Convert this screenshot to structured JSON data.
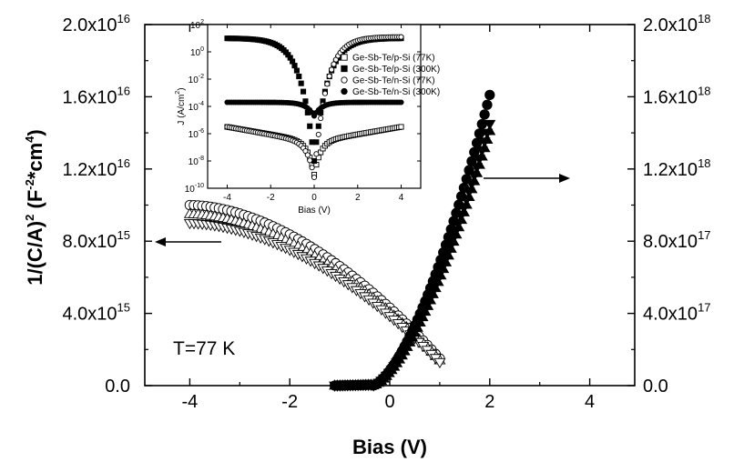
{
  "chart_data": [
    {
      "type": "scatter",
      "title": "",
      "xlabel": "Bias (V)",
      "ylabel": "1/(C/A)",
      "ylabel_sup1": "2",
      "ylabel_unit_open": " (F",
      "ylabel_sup2": "-2",
      "ylabel_unit_mid": "*cm",
      "ylabel_sup3": "4",
      "ylabel_unit_close": ")",
      "xlim": [
        -4.9,
        4.9
      ],
      "ylim_left": [
        0,
        2e+16
      ],
      "ylim_right": [
        0,
        2e+18
      ],
      "x_ticks": [
        {
          "value": -4,
          "label": "-4"
        },
        {
          "value": -2,
          "label": "-2"
        },
        {
          "value": 0,
          "label": "0"
        },
        {
          "value": 2,
          "label": "2"
        },
        {
          "value": 4,
          "label": "4"
        }
      ],
      "y_left_ticks": [
        {
          "value": 0,
          "mantissa": "0.0",
          "exp": ""
        },
        {
          "value": 4000000000000000.0,
          "mantissa": "4.0x10",
          "exp": "15"
        },
        {
          "value": 8000000000000000.0,
          "mantissa": "8.0x10",
          "exp": "15"
        },
        {
          "value": 1.2e+16,
          "mantissa": "1.2x10",
          "exp": "16"
        },
        {
          "value": 1.6e+16,
          "mantissa": "1.6x10",
          "exp": "16"
        },
        {
          "value": 2e+16,
          "mantissa": "2.0x10",
          "exp": "16"
        }
      ],
      "y_right_ticks": [
        {
          "value": 0,
          "mantissa": "0.0",
          "exp": ""
        },
        {
          "value": 4e+17,
          "mantissa": "4.0x10",
          "exp": "17"
        },
        {
          "value": 8e+17,
          "mantissa": "8.0x10",
          "exp": "17"
        },
        {
          "value": 1.2e+18,
          "mantissa": "1.2x10",
          "exp": "18"
        },
        {
          "value": 1.6e+18,
          "mantissa": "1.6x10",
          "exp": "18"
        },
        {
          "value": 2e+18,
          "mantissa": "2.0x10",
          "exp": "18"
        }
      ],
      "annotation": "T=77 K",
      "series": [
        {
          "marker": "open-circle",
          "axis": "left",
          "x_range": [
            -4.0,
            1.0
          ],
          "y_start": 1e+16,
          "y_end": 1500000000000000.0
        },
        {
          "marker": "open-triangle-up",
          "axis": "left",
          "x_range": [
            -4.0,
            1.0
          ],
          "y_start": 9500000000000000.0,
          "y_end": 1400000000000000.0
        },
        {
          "marker": "open-triangle-down",
          "axis": "left",
          "x_range": [
            -4.0,
            1.0
          ],
          "y_start": 9000000000000000.0,
          "y_end": 1300000000000000.0
        },
        {
          "marker": "filled-circle",
          "axis": "right",
          "x_range": [
            -1.1,
            2.0
          ],
          "y_start": 0,
          "y_end": 1.61e+18
        },
        {
          "marker": "filled-triangle-down",
          "axis": "right",
          "x_range": [
            -1.1,
            2.0
          ],
          "y_start": 0,
          "y_end": 1.45e+18
        },
        {
          "marker": "filled-triangle-up",
          "axis": "right",
          "x_range": [
            -1.1,
            2.0
          ],
          "y_start": 0,
          "y_end": 1.41e+18
        }
      ]
    },
    {
      "type": "scatter",
      "title": "",
      "xlabel": "Bias (V)",
      "ylabel": "J (A/cm",
      "ylabel_sup": "2",
      "ylabel_close": ")",
      "yscale": "log",
      "xlim": [
        -4.9,
        4.9
      ],
      "ylim": [
        1e-10,
        100
      ],
      "x_ticks": [
        {
          "value": -4,
          "label": "-4"
        },
        {
          "value": -2,
          "label": "-2"
        },
        {
          "value": 0,
          "label": "0"
        },
        {
          "value": 2,
          "label": "2"
        },
        {
          "value": 4,
          "label": "4"
        }
      ],
      "y_ticks": [
        {
          "exp_value": 2,
          "base": "10",
          "exp": "2"
        },
        {
          "exp_value": 0,
          "base": "10",
          "exp": "0"
        },
        {
          "exp_value": -2,
          "base": "10",
          "exp": "-2"
        },
        {
          "exp_value": -4,
          "base": "10",
          "exp": "-4"
        },
        {
          "exp_value": -6,
          "base": "10",
          "exp": "-6"
        },
        {
          "exp_value": -8,
          "base": "10",
          "exp": "-8"
        },
        {
          "exp_value": -10,
          "base": "10",
          "exp": "-10"
        }
      ],
      "legend_position": "center-right",
      "series": [
        {
          "name": "Ge-Sb-Te/p-Si (77K)",
          "marker": "open-square",
          "log_left": -5.5,
          "log_right": -5.5,
          "log_min": -9.0,
          "shape": "dip-narrow"
        },
        {
          "name": "Ge-Sb-Te/p-Si (300K)",
          "marker": "filled-square",
          "log_left": 1.0,
          "log_right": 1.0,
          "log_min": -8.0,
          "shape": "dip-wide"
        },
        {
          "name": "Ge-Sb-Te/n-Si (77K)",
          "marker": "open-circle",
          "log_left": -5.5,
          "log_right": 1.1,
          "log_min": -9.2,
          "shape": "rectify"
        },
        {
          "name": "Ge-Sb-Te/n-Si (300K)",
          "marker": "filled-circle",
          "log_left": -3.7,
          "log_right": -3.7,
          "log_min": -4.7,
          "shape": "flat"
        }
      ]
    }
  ]
}
